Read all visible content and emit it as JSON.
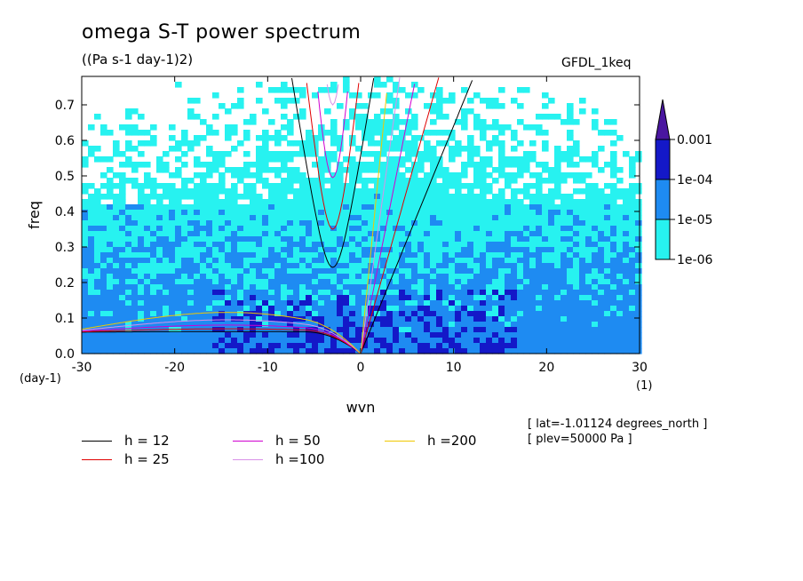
{
  "header": {
    "title": "omega S-T power spectrum",
    "subtitle": "((Pa s-1 day-1)2)",
    "dataset": "GFDL_1keq"
  },
  "colors": {
    "level_1e-06": "#27f2f0",
    "level_1e-05": "#1e8bf2",
    "level_1e-04": "#1418c8",
    "level_0.001": "#4a16a0",
    "h12": "#000000",
    "h25": "#e00000",
    "h50": "#d000d0",
    "h100": "#d891e8",
    "h200": "#f0c800"
  },
  "chart_data": {
    "type": "heatmap",
    "title": "omega S-T power spectrum",
    "subtitle": "((Pa s-1 day-1)2)",
    "xlabel": "wvn",
    "ylabel": "freq",
    "x_unit": "(1)",
    "y_unit": "(day-1)",
    "xlim": [
      -30,
      30
    ],
    "ylim": [
      0,
      0.78
    ],
    "x_ticks": [
      "-30",
      "-20",
      "-10",
      "0",
      "10",
      "20",
      "30"
    ],
    "y_ticks": [
      "0.0",
      "0.1",
      "0.2",
      "0.3",
      "0.4",
      "0.5",
      "0.6",
      "0.7"
    ],
    "colorbar": {
      "labels": [
        "0.001",
        "1e-04",
        "1e-05",
        "1e-06"
      ],
      "levels": [
        1e-06,
        1e-05,
        0.0001,
        0.001
      ]
    },
    "dispersion_curves": [
      {
        "name": "h = 12",
        "h": 12
      },
      {
        "name": "h = 25",
        "h": 25
      },
      {
        "name": "h = 50",
        "h": 50
      },
      {
        "name": "h =100",
        "h": 100
      },
      {
        "name": "h =200",
        "h": 200
      }
    ],
    "annotations": [
      "[ lat=-1.01124 degrees_north ]",
      "[ plev=50000 Pa ]"
    ]
  },
  "legend": {
    "items": [
      {
        "label": "h = 12",
        "color": "#000000"
      },
      {
        "label": "h = 25",
        "color": "#e00000"
      },
      {
        "label": "h = 50",
        "color": "#d000d0"
      },
      {
        "label": "h =100",
        "color": "#d891e8"
      },
      {
        "label": "h =200",
        "color": "#f0c800"
      }
    ]
  },
  "meta": {
    "lat": "[ lat=-1.01124 degrees_north ]",
    "plev": "[ plev=50000 Pa ]"
  }
}
